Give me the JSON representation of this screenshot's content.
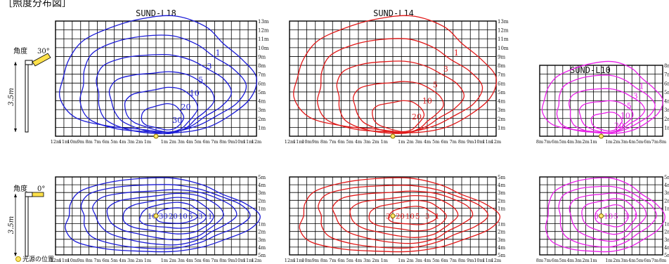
{
  "header": "［照度分布図］",
  "legend_label": "光源の位置",
  "rows": [
    {
      "angle_label": "角度",
      "angle_value": "30°",
      "height_label": "3.5m"
    },
    {
      "angle_label": "角度",
      "angle_value": "0°",
      "height_label": "3.5m"
    }
  ],
  "panels": [
    {
      "title": "SUND-L18",
      "color": "#1a1ad6",
      "x_ticks_bottom": [
        "12m",
        "11m",
        "10m",
        "9m",
        "8m",
        "7m",
        "6m",
        "5m",
        "4m",
        "3m",
        "2m",
        "1m",
        "",
        "1m",
        "2m",
        "3m",
        "4m",
        "5m",
        "6m",
        "7m",
        "8m",
        "9m",
        "10m",
        "11m",
        "12m"
      ],
      "y_ticks_top": [
        "13m",
        "12m",
        "11m",
        "10m",
        "9m",
        "8m",
        "7m",
        "6m",
        "5m",
        "4m",
        "3m",
        "2m",
        "1m"
      ],
      "y_ticks_bottom": [
        "5m",
        "4m",
        "3m",
        "2m",
        "1m",
        "",
        "1m",
        "2m",
        "3m",
        "4m",
        "5m"
      ],
      "contour_labels_top": [
        "1",
        "3",
        "5",
        "10",
        "20",
        "30"
      ],
      "contour_labels_bottom": [
        "10",
        "30",
        "20",
        "10",
        "5",
        "3",
        "1"
      ]
    },
    {
      "title": "SUND-L14",
      "color": "#e01818",
      "x_ticks_bottom": [
        "12m",
        "11m",
        "10m",
        "9m",
        "8m",
        "7m",
        "6m",
        "5m",
        "4m",
        "3m",
        "2m",
        "1m",
        "",
        "1m",
        "2m",
        "3m",
        "4m",
        "5m",
        "6m",
        "7m",
        "8m",
        "9m",
        "10m",
        "11m",
        "12m"
      ],
      "y_ticks_top": [
        "13m",
        "12m",
        "11m",
        "10m",
        "9m",
        "8m",
        "7m",
        "6m",
        "5m",
        "4m",
        "3m",
        "2m",
        "1m"
      ],
      "y_ticks_bottom": [
        "5m",
        "4m",
        "3m",
        "2m",
        "1m",
        "",
        "1m",
        "2m",
        "3m",
        "4m",
        "5m"
      ],
      "contour_labels_top": [
        "1",
        "3",
        "5",
        "10",
        "20"
      ],
      "contour_labels_bottom": [
        "30",
        "20",
        "10",
        "5",
        "3",
        "1"
      ]
    },
    {
      "title": "SUND-L10",
      "color": "#e81ee8",
      "x_ticks_bottom": [
        "8m",
        "7m",
        "6m",
        "5m",
        "4m",
        "3m",
        "2m",
        "1m",
        "",
        "1m",
        "2m",
        "3m",
        "4m",
        "5m",
        "6m",
        "7m",
        "8m"
      ],
      "y_ticks_top": [
        "8m",
        "7m",
        "6m",
        "5m",
        "4m",
        "3m",
        "2m",
        "1m"
      ],
      "y_ticks_bottom": [
        "5m",
        "4m",
        "3m",
        "2m",
        "1m",
        "",
        "1m",
        "2m",
        "3m",
        "4m",
        "5m"
      ],
      "contour_labels_top": [
        "1",
        "3",
        "5",
        "10",
        "20"
      ],
      "contour_labels_bottom": [
        "30",
        "10",
        "5",
        "3",
        "1"
      ]
    }
  ]
}
